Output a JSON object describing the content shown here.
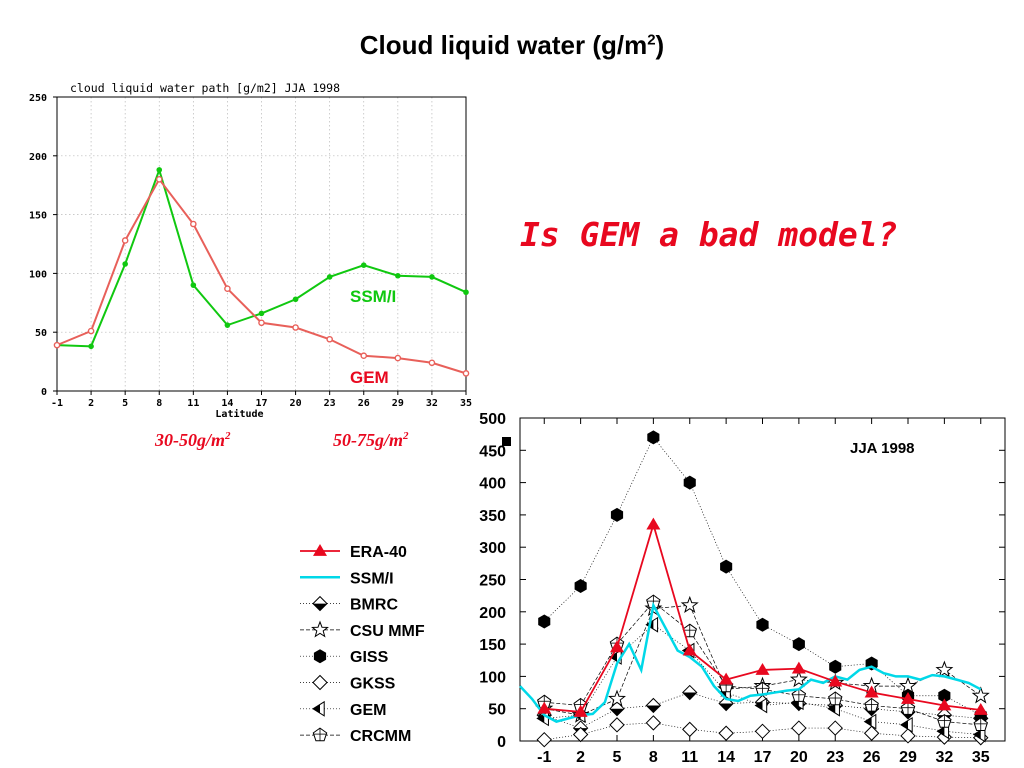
{
  "slide": {
    "title": "Cloud liquid water (g/m",
    "title_sup": "2",
    "title_close": ")",
    "question": "Is GEM a bad model?",
    "range_left": "30-50g/m",
    "range_right": "50-75g/m",
    "range_sup": "2"
  },
  "colors": {
    "red": "#e8081f",
    "green": "#10c810",
    "cyan": "#00d8e8",
    "redline": "#e8605a"
  },
  "chart_data": [
    {
      "type": "line",
      "title": "cloud liquid water path [g/m2] JJA 1998",
      "xlabel": "Latitude",
      "ylabel": "",
      "x": [
        -1,
        2,
        5,
        8,
        11,
        14,
        17,
        20,
        23,
        26,
        29,
        32,
        35
      ],
      "x_ticks": [
        "-1",
        "2",
        "5",
        "8",
        "11",
        "14",
        "17",
        "20",
        "23",
        "26",
        "29",
        "32",
        "35"
      ],
      "y_ticks": [
        "0",
        "50",
        "100",
        "150",
        "200",
        "250"
      ],
      "ylim": [
        0,
        250
      ],
      "grid": true,
      "series": [
        {
          "name": "SSM/I",
          "color": "#10c810",
          "values": [
            39,
            38,
            108,
            188,
            90,
            56,
            66,
            78,
            97,
            107,
            98,
            97,
            84
          ]
        },
        {
          "name": "GEM",
          "color": "#e8605a",
          "values": [
            39,
            51,
            128,
            180,
            142,
            87,
            58,
            54,
            44,
            30,
            28,
            24,
            15
          ]
        }
      ]
    },
    {
      "type": "line",
      "title": "JJA 1998",
      "xlabel": "",
      "ylabel": "",
      "x_ticks": [
        "-1",
        "2",
        "5",
        "8",
        "11",
        "14",
        "17",
        "20",
        "23",
        "26",
        "29",
        "32",
        "35"
      ],
      "y_ticks": [
        "0",
        "50",
        "100",
        "150",
        "200",
        "250",
        "300",
        "350",
        "400",
        "450",
        "500"
      ],
      "xlim": [
        -3,
        37
      ],
      "ylim": [
        0,
        500
      ],
      "grid": false,
      "legend_position": "left-outside",
      "series": [
        {
          "name": "ERA-40",
          "marker": "triangle",
          "color": "#e8081f",
          "x": [
            -1,
            2,
            5,
            8,
            11,
            14,
            17,
            20,
            23,
            26,
            29,
            32,
            35
          ],
          "values": [
            50,
            45,
            145,
            335,
            140,
            95,
            110,
            112,
            92,
            75,
            65,
            55,
            48
          ]
        },
        {
          "name": "SSM/I",
          "marker": "none",
          "color": "#00d8e8",
          "x": [
            -3,
            -2,
            -1,
            0,
            1,
            2,
            3,
            4,
            5,
            6,
            7,
            8,
            9,
            10,
            11,
            12,
            13,
            14,
            15,
            16,
            17,
            18,
            19,
            20,
            21,
            22,
            23,
            24,
            25,
            26,
            27,
            28,
            29,
            30,
            31,
            32,
            33,
            34,
            35
          ],
          "values": [
            85,
            65,
            40,
            30,
            35,
            40,
            42,
            60,
            120,
            150,
            110,
            210,
            175,
            140,
            130,
            115,
            85,
            65,
            62,
            70,
            72,
            75,
            78,
            80,
            95,
            90,
            100,
            95,
            110,
            115,
            105,
            100,
            100,
            95,
            102,
            100,
            95,
            90,
            80
          ]
        },
        {
          "name": "BMRC",
          "marker": "half-diamond",
          "color": "#000000",
          "x": [
            -1,
            2,
            5,
            8,
            11,
            14,
            17,
            20,
            23,
            26,
            29,
            32,
            35
          ],
          "values": [
            40,
            20,
            50,
            55,
            75,
            58,
            60,
            58,
            55,
            50,
            45,
            40,
            35
          ]
        },
        {
          "name": "CSU MMF",
          "marker": "star",
          "color": "#000000",
          "x": [
            -1,
            2,
            5,
            8,
            11,
            14,
            17,
            20,
            23,
            26,
            29,
            32,
            35
          ],
          "values": [
            50,
            40,
            65,
            205,
            210,
            80,
            85,
            95,
            90,
            85,
            85,
            110,
            70
          ]
        },
        {
          "name": "GISS",
          "marker": "hexagon",
          "color": "#000000",
          "x": [
            -1,
            2,
            5,
            8,
            11,
            14,
            17,
            20,
            23,
            26,
            29,
            32,
            35
          ],
          "values": [
            185,
            240,
            350,
            470,
            400,
            270,
            180,
            150,
            115,
            120,
            70,
            70,
            40
          ]
        },
        {
          "name": "GKSS",
          "marker": "diamond",
          "color": "#000000",
          "x": [
            -1,
            2,
            5,
            8,
            11,
            14,
            17,
            20,
            23,
            26,
            29,
            32,
            35
          ],
          "values": [
            2,
            10,
            25,
            28,
            18,
            12,
            15,
            20,
            20,
            12,
            8,
            6,
            5
          ]
        },
        {
          "name": "GEM",
          "marker": "half-triangle",
          "color": "#000000",
          "x": [
            -1,
            2,
            5,
            8,
            11,
            14,
            17,
            20,
            23,
            26,
            29,
            32,
            35
          ],
          "values": [
            35,
            40,
            130,
            180,
            140,
            75,
            55,
            60,
            50,
            30,
            25,
            15,
            10
          ]
        },
        {
          "name": "CRCMM",
          "marker": "pentagon",
          "color": "#000000",
          "x": [
            -1,
            2,
            5,
            8,
            11,
            14,
            17,
            20,
            23,
            26,
            29,
            32,
            35
          ],
          "values": [
            60,
            55,
            150,
            215,
            170,
            85,
            80,
            70,
            65,
            55,
            50,
            30,
            25
          ]
        }
      ]
    }
  ]
}
